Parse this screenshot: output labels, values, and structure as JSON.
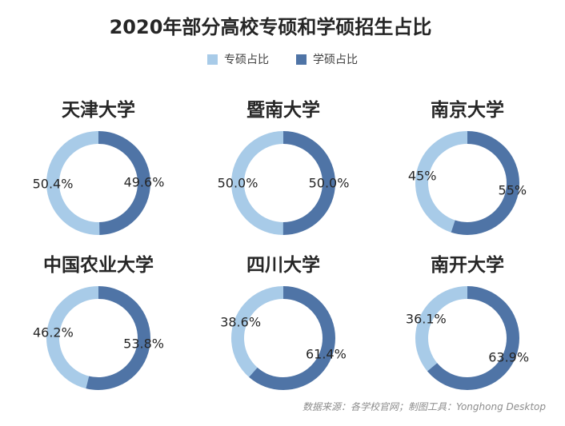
{
  "title": "2020年部分高校专硕和学硕招生占比",
  "source": "数据来源：各学校官网；制图工具：Yonghong Desktop",
  "colors": {
    "zhuanshuo": "#a8cbe8",
    "xueshuo": "#4f74a6"
  },
  "legend": [
    {
      "label": "专硕占比",
      "color": "#a8cbe8"
    },
    {
      "label": "学硕占比",
      "color": "#4f74a6"
    }
  ],
  "chart_data": {
    "type": "pie",
    "title": "2020年部分高校专硕和学硕招生占比",
    "series_names": [
      "专硕占比",
      "学硕占比"
    ],
    "charts": [
      {
        "name": "天津大学",
        "values": [
          50.4,
          49.6
        ],
        "labels": [
          "50.4%",
          "49.6%"
        ]
      },
      {
        "name": "暨南大学",
        "values": [
          50.0,
          50.0
        ],
        "labels": [
          "50.0%",
          "50.0%"
        ]
      },
      {
        "name": "南京大学",
        "values": [
          45,
          55
        ],
        "labels": [
          "45%",
          "55%"
        ]
      },
      {
        "name": "中国农业大学",
        "values": [
          46.2,
          53.8
        ],
        "labels": [
          "46.2%",
          "53.8%"
        ]
      },
      {
        "name": "四川大学",
        "values": [
          38.6,
          61.4
        ],
        "labels": [
          "38.6%",
          "61.4%"
        ]
      },
      {
        "name": "南开大学",
        "values": [
          36.1,
          63.9
        ],
        "labels": [
          "36.1%",
          "63.9%"
        ]
      }
    ]
  }
}
